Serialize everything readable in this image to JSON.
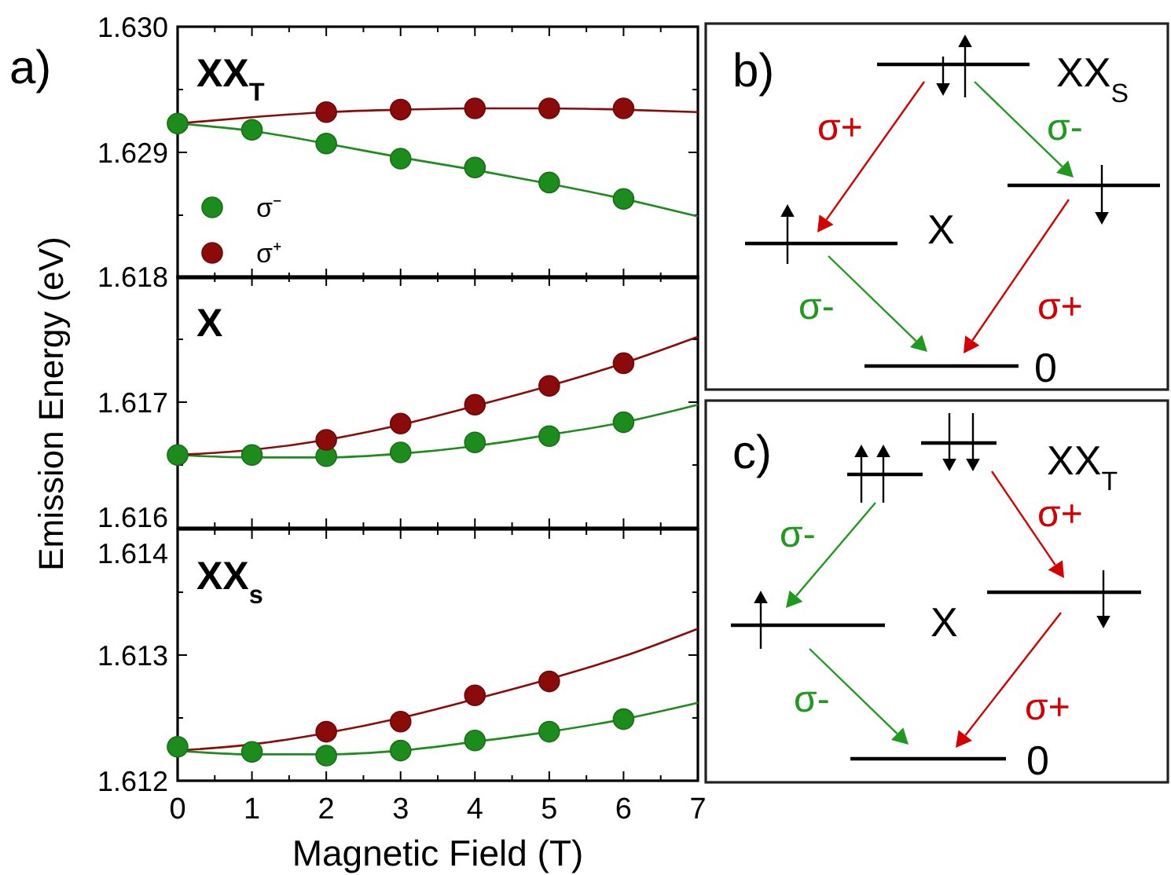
{
  "chart_data": [
    {
      "type": "scatter",
      "title": "XX$_{T}$",
      "annotations": [
        "a)"
      ],
      "xlim": [
        0,
        7
      ],
      "xticks": [
        0,
        1,
        2,
        3,
        4,
        5,
        6,
        7
      ],
      "ylim": [
        1.628,
        1.63
      ],
      "yticks": [
        {
          "value": 1.628,
          "label": null
        },
        1.629,
        {
          "value": 1.63,
          "label": "1.630"
        }
      ],
      "tick_labels": "y",
      "legend": "bottom left",
      "marker": "circle",
      "series": [
        {
          "name": "σ⁻",
          "color": "#1c8c1c",
          "x": [
            0,
            1,
            2,
            3,
            4,
            5,
            6
          ],
          "values": [
            1.62923,
            1.62918,
            1.62907,
            1.62895,
            1.62888,
            1.62876,
            1.62863
          ]
        },
        {
          "name": "σ⁺",
          "color": "#8b0a0a",
          "x": [
            2,
            3,
            4,
            5,
            6
          ],
          "values": [
            1.62932,
            1.62934,
            1.62935,
            1.62935,
            1.62935
          ]
        },
        {
          "type": "line",
          "marker": "none",
          "color": "#1c8c1c",
          "x": [
            0,
            1,
            2,
            3,
            4,
            5,
            6,
            7
          ],
          "values": [
            1.62923,
            1.62917,
            1.62907,
            1.62896,
            1.62886,
            1.62875,
            1.62863,
            1.62849
          ]
        },
        {
          "type": "line",
          "marker": "none",
          "color": "#8b0a0a",
          "x": [
            0,
            1,
            2,
            3,
            4,
            5,
            6,
            7
          ],
          "values": [
            1.62923,
            1.62928,
            1.62932,
            1.62934,
            1.62935,
            1.62935,
            1.62934,
            1.62932
          ]
        }
      ]
    },
    {
      "type": "scatter",
      "title": "X",
      "ylabel": "Emission Energy (eV)",
      "xlim": [
        0,
        7
      ],
      "xticks": [
        0,
        1,
        2,
        3,
        4,
        5,
        6,
        7
      ],
      "ylim": [
        1.616,
        1.618
      ],
      "yticks": [
        1.616,
        1.617,
        1.618
      ],
      "tick_labels": "y",
      "marker": "circle",
      "series": [
        {
          "color": "#1c8c1c",
          "x": [
            0,
            1,
            2,
            3,
            4,
            5,
            6
          ],
          "values": [
            1.61658,
            1.61658,
            1.61657,
            1.6166,
            1.61668,
            1.61673,
            1.61684
          ]
        },
        {
          "color": "#8b0a0a",
          "x": [
            2,
            3,
            4,
            5,
            6
          ],
          "values": [
            1.6167,
            1.61683,
            1.61698,
            1.61713,
            1.61731
          ]
        },
        {
          "type": "line",
          "marker": "none",
          "color": "#1c8c1c",
          "x": [
            0,
            1,
            2,
            3,
            4,
            5,
            6,
            7
          ],
          "values": [
            1.61658,
            1.61656,
            1.61656,
            1.61659,
            1.61665,
            1.61674,
            1.61684,
            1.61698
          ]
        },
        {
          "type": "line",
          "marker": "none",
          "color": "#8b0a0a",
          "x": [
            0,
            1,
            2,
            3,
            4,
            5,
            6,
            7
          ],
          "values": [
            1.61658,
            1.61662,
            1.6167,
            1.61682,
            1.61697,
            1.61713,
            1.61731,
            1.61752
          ]
        }
      ]
    },
    {
      "type": "scatter",
      "title": "XX$_{s}$",
      "xlabel": "Magnetic Field (T)",
      "xlim": [
        0,
        7
      ],
      "xticks": [
        0,
        1,
        2,
        3,
        4,
        5,
        6,
        7
      ],
      "ylim": [
        1.612,
        1.614
      ],
      "yticks": [
        1.612,
        1.613,
        1.614
      ],
      "marker": "circle",
      "series": [
        {
          "color": "#1c8c1c",
          "x": [
            0,
            1,
            2,
            3,
            4,
            5,
            6
          ],
          "values": [
            1.61227,
            1.61223,
            1.6122,
            1.61224,
            1.61232,
            1.61239,
            1.61249
          ]
        },
        {
          "color": "#8b0a0a",
          "x": [
            2,
            3,
            4,
            5
          ],
          "values": [
            1.61239,
            1.61247,
            1.61268,
            1.61279
          ]
        },
        {
          "type": "line",
          "marker": "none",
          "color": "#1c8c1c",
          "x": [
            0,
            1,
            2,
            3,
            4,
            5,
            6,
            7
          ],
          "values": [
            1.61224,
            1.61221,
            1.61221,
            1.61224,
            1.61231,
            1.61239,
            1.61249,
            1.61262
          ]
        },
        {
          "type": "line",
          "marker": "none",
          "color": "#8b0a0a",
          "x": [
            0,
            1,
            2,
            3,
            4,
            5,
            6,
            7
          ],
          "values": [
            1.61224,
            1.61229,
            1.61238,
            1.6125,
            1.61265,
            1.61281,
            1.61299,
            1.61321
          ]
        }
      ]
    },
    {
      "type": "other",
      "annotations": [
        "b)",
        "XX$_{S}$",
        "σ+",
        "σ-",
        "X",
        "σ-",
        "σ+",
        "0"
      ]
    },
    {
      "type": "other",
      "annotations": [
        "c)",
        "XX$_{T}$",
        "σ+",
        "σ-",
        "X",
        "σ-",
        "σ+",
        "0"
      ]
    }
  ]
}
